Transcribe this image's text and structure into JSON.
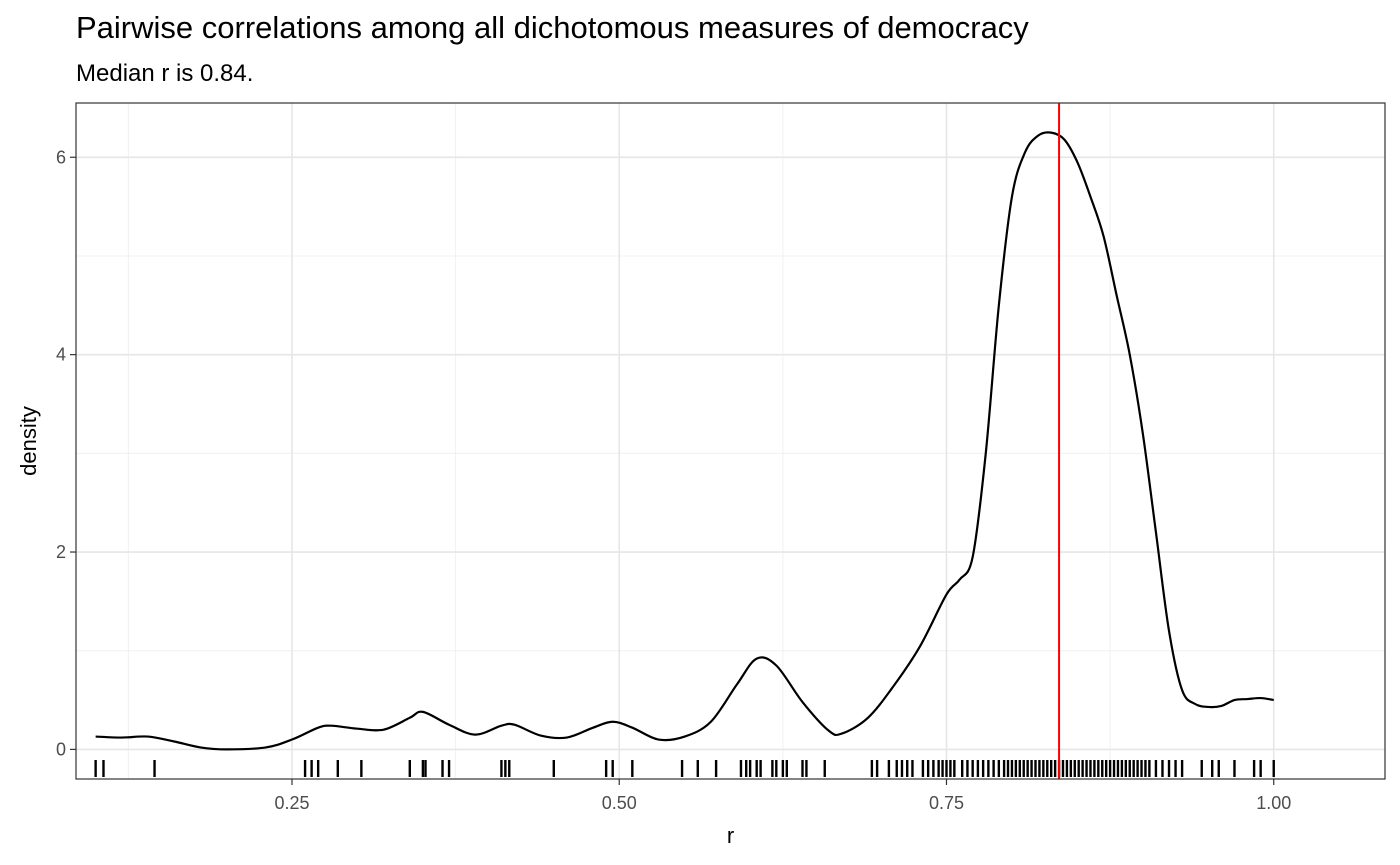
{
  "chart_data": {
    "type": "density",
    "title": "Pairwise correlations among all dichotomous measures of democracy",
    "subtitle": "Median r is 0.84.",
    "xlabel": "r",
    "ylabel": "density",
    "xlim": [
      0.085,
      1.085
    ],
    "ylim": [
      -0.3,
      6.55
    ],
    "x_ticks": [
      {
        "value": 0.25,
        "label": "0.25"
      },
      {
        "value": 0.5,
        "label": "0.50"
      },
      {
        "value": 0.75,
        "label": "0.75"
      },
      {
        "value": 1.0,
        "label": "1.00"
      }
    ],
    "y_ticks": [
      {
        "value": 0,
        "label": "0"
      },
      {
        "value": 2,
        "label": "2"
      },
      {
        "value": 4,
        "label": "4"
      },
      {
        "value": 6,
        "label": "6"
      }
    ],
    "median_line": {
      "value": 0.836,
      "color": "#ff0000"
    },
    "density_curve": {
      "color": "#000000",
      "x": [
        0.1,
        0.12,
        0.14,
        0.16,
        0.18,
        0.2,
        0.23,
        0.25,
        0.27,
        0.28,
        0.3,
        0.32,
        0.34,
        0.35,
        0.37,
        0.39,
        0.41,
        0.42,
        0.44,
        0.46,
        0.48,
        0.495,
        0.51,
        0.53,
        0.55,
        0.57,
        0.59,
        0.605,
        0.62,
        0.64,
        0.66,
        0.67,
        0.69,
        0.71,
        0.73,
        0.75,
        0.76,
        0.77,
        0.78,
        0.79,
        0.8,
        0.81,
        0.82,
        0.83,
        0.84,
        0.85,
        0.86,
        0.87,
        0.88,
        0.89,
        0.9,
        0.91,
        0.92,
        0.93,
        0.94,
        0.95,
        0.96,
        0.97,
        0.98,
        0.99,
        1.0
      ],
      "y": [
        0.13,
        0.12,
        0.13,
        0.08,
        0.02,
        0.0,
        0.02,
        0.1,
        0.22,
        0.24,
        0.21,
        0.2,
        0.32,
        0.38,
        0.25,
        0.15,
        0.24,
        0.25,
        0.14,
        0.12,
        0.22,
        0.28,
        0.22,
        0.1,
        0.13,
        0.28,
        0.66,
        0.92,
        0.85,
        0.48,
        0.19,
        0.16,
        0.32,
        0.65,
        1.05,
        1.57,
        1.72,
        1.95,
        3.0,
        4.5,
        5.6,
        6.05,
        6.22,
        6.25,
        6.18,
        5.95,
        5.6,
        5.2,
        4.6,
        4.0,
        3.2,
        2.2,
        1.2,
        0.6,
        0.46,
        0.43,
        0.44,
        0.5,
        0.51,
        0.52,
        0.5
      ]
    },
    "rug": [
      0.1,
      0.106,
      0.145,
      0.26,
      0.265,
      0.27,
      0.285,
      0.303,
      0.34,
      0.35,
      0.352,
      0.365,
      0.37,
      0.41,
      0.413,
      0.416,
      0.45,
      0.49,
      0.495,
      0.51,
      0.548,
      0.56,
      0.574,
      0.593,
      0.597,
      0.6,
      0.605,
      0.608,
      0.617,
      0.62,
      0.625,
      0.628,
      0.64,
      0.643,
      0.657,
      0.693,
      0.697,
      0.706,
      0.712,
      0.716,
      0.72,
      0.724,
      0.732,
      0.736,
      0.74,
      0.744,
      0.747,
      0.75,
      0.753,
      0.756,
      0.762,
      0.766,
      0.77,
      0.774,
      0.778,
      0.782,
      0.786,
      0.79,
      0.794,
      0.797,
      0.8,
      0.803,
      0.806,
      0.809,
      0.812,
      0.815,
      0.818,
      0.821,
      0.824,
      0.827,
      0.83,
      0.833,
      0.836,
      0.839,
      0.842,
      0.845,
      0.848,
      0.851,
      0.854,
      0.857,
      0.86,
      0.863,
      0.866,
      0.869,
      0.872,
      0.875,
      0.878,
      0.881,
      0.884,
      0.887,
      0.89,
      0.893,
      0.896,
      0.899,
      0.902,
      0.905,
      0.91,
      0.915,
      0.92,
      0.925,
      0.93,
      0.945,
      0.953,
      0.958,
      0.97,
      0.985,
      0.99,
      1.0
    ]
  }
}
